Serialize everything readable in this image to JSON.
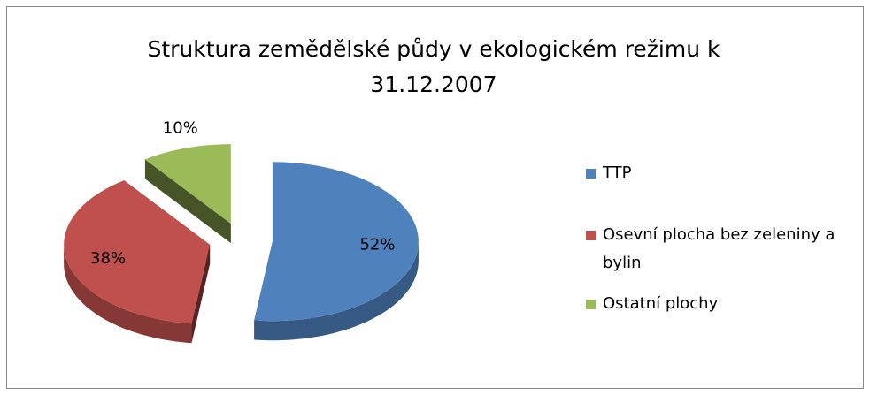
{
  "chart_data": {
    "type": "pie",
    "title": "Struktura zemědělské půdy v ekologickém režimu k 31.12.2007",
    "categories": [
      "TTP",
      "Osevní plocha bez zeleniny a bylin",
      "Ostatní plochy"
    ],
    "values": [
      52,
      38,
      10
    ],
    "value_labels": [
      "52%",
      "38%",
      "10%"
    ],
    "colors": [
      "#4f81bd",
      "#c0504d",
      "#9bbb59"
    ],
    "legend": "right"
  }
}
